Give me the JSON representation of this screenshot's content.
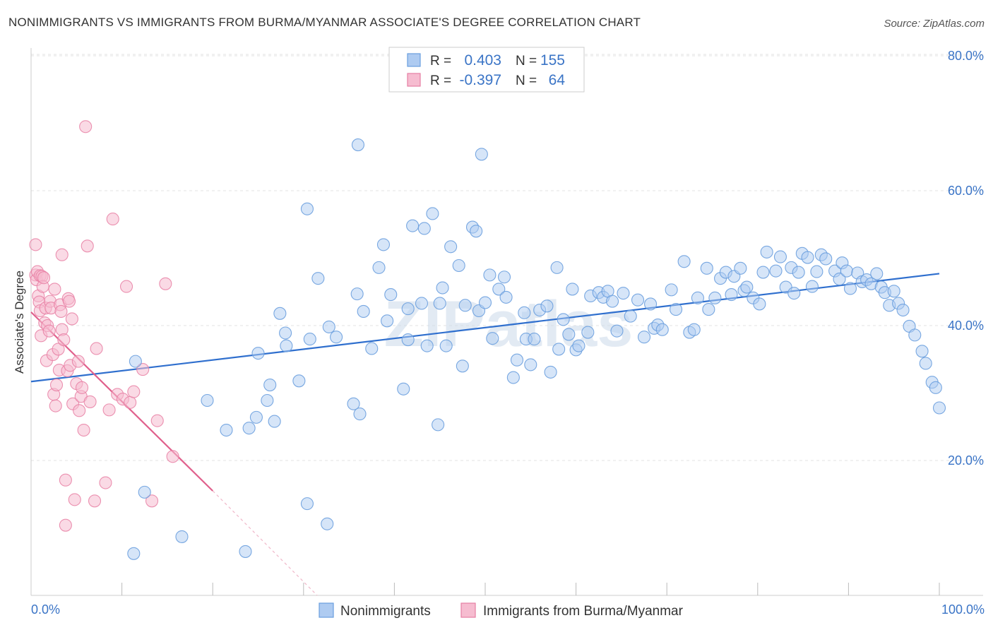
{
  "title": "NONIMMIGRANTS VS IMMIGRANTS FROM BURMA/MYANMAR ASSOCIATE'S DEGREE CORRELATION CHART",
  "source": "Source: ZipAtlas.com",
  "watermark": "ZIPatlas",
  "colors": {
    "blue": "#6a9fde",
    "blue_fill": "#aecbf1",
    "blue_line": "#2f6fce",
    "pink": "#e77fa3",
    "pink_fill": "#f6bcd0",
    "pink_line": "#e0608c",
    "axis_label": "#3a74c6"
  },
  "legend_box": [
    {
      "r_label": "R =",
      "r_value": "0.403",
      "n_label": "N =",
      "n_value": "155"
    },
    {
      "r_label": "R =",
      "r_value": "-0.397",
      "n_label": "N =",
      "n_value": "64"
    }
  ],
  "chart_data": {
    "type": "scatter",
    "xlabel": "",
    "ylabel": "Associate's Degree",
    "xlim": [
      0,
      100
    ],
    "ylim": [
      0,
      85
    ],
    "x_tick_labels": [
      "0.0%",
      "100.0%"
    ],
    "y_ticks": [
      20,
      40,
      60,
      80
    ],
    "y_tick_labels": [
      "20.0%",
      "40.0%",
      "60.0%",
      "80.0%"
    ],
    "grid": true,
    "legend": "bottom-center",
    "series": [
      {
        "name": "Nonimmigrants",
        "trend": {
          "x": [
            0,
            100
          ],
          "y": [
            31.7,
            47.7
          ]
        },
        "points": [
          [
            11.3,
            6.2
          ],
          [
            16.6,
            8.7
          ],
          [
            23.6,
            6.5
          ],
          [
            12.5,
            15.3
          ],
          [
            30.4,
            13.6
          ],
          [
            32.6,
            10.6
          ],
          [
            11.5,
            34.7
          ],
          [
            19.4,
            28.9
          ],
          [
            21.5,
            24.5
          ],
          [
            24.0,
            24.8
          ],
          [
            24.8,
            26.4
          ],
          [
            26.0,
            28.9
          ],
          [
            26.8,
            25.8
          ],
          [
            25.0,
            35.9
          ],
          [
            26.3,
            31.2
          ],
          [
            27.4,
            41.8
          ],
          [
            28.0,
            38.9
          ],
          [
            28.1,
            37.0
          ],
          [
            29.5,
            31.8
          ],
          [
            30.7,
            38.0
          ],
          [
            31.6,
            47.0
          ],
          [
            32.8,
            39.8
          ],
          [
            33.6,
            38.3
          ],
          [
            35.5,
            28.4
          ],
          [
            36.2,
            26.9
          ],
          [
            35.9,
            44.7
          ],
          [
            36.6,
            42.1
          ],
          [
            37.5,
            36.6
          ],
          [
            38.3,
            48.6
          ],
          [
            38.8,
            52.0
          ],
          [
            39.2,
            40.7
          ],
          [
            39.6,
            44.6
          ],
          [
            41.0,
            30.6
          ],
          [
            41.5,
            37.9
          ],
          [
            41.5,
            42.5
          ],
          [
            43.3,
            54.4
          ],
          [
            43.0,
            43.3
          ],
          [
            43.6,
            37.0
          ],
          [
            44.8,
            25.3
          ],
          [
            45.0,
            43.3
          ],
          [
            45.3,
            45.6
          ],
          [
            45.7,
            37.0
          ],
          [
            46.2,
            51.7
          ],
          [
            47.1,
            48.9
          ],
          [
            47.5,
            34.0
          ],
          [
            47.8,
            43.0
          ],
          [
            48.6,
            54.6
          ],
          [
            49.0,
            54.0
          ],
          [
            49.3,
            42.2
          ],
          [
            50.0,
            43.4
          ],
          [
            50.5,
            47.5
          ],
          [
            50.8,
            38.1
          ],
          [
            51.5,
            45.4
          ],
          [
            52.1,
            47.2
          ],
          [
            52.3,
            44.2
          ],
          [
            53.1,
            32.3
          ],
          [
            53.5,
            34.9
          ],
          [
            54.3,
            41.9
          ],
          [
            54.5,
            38.0
          ],
          [
            55.0,
            34.2
          ],
          [
            55.4,
            38.0
          ],
          [
            56.0,
            42.3
          ],
          [
            56.8,
            42.9
          ],
          [
            57.2,
            33.1
          ],
          [
            57.9,
            48.6
          ],
          [
            58.1,
            36.5
          ],
          [
            58.6,
            40.9
          ],
          [
            59.2,
            38.7
          ],
          [
            59.6,
            45.4
          ],
          [
            60.0,
            36.4
          ],
          [
            60.3,
            37.0
          ],
          [
            61.3,
            39.0
          ],
          [
            61.6,
            44.4
          ],
          [
            62.5,
            44.9
          ],
          [
            63.0,
            44.2
          ],
          [
            63.5,
            45.1
          ],
          [
            64.0,
            43.6
          ],
          [
            64.5,
            39.2
          ],
          [
            65.2,
            44.8
          ],
          [
            66.0,
            41.4
          ],
          [
            66.8,
            43.8
          ],
          [
            67.5,
            38.3
          ],
          [
            68.2,
            43.2
          ],
          [
            68.6,
            39.6
          ],
          [
            69.0,
            40.1
          ],
          [
            69.5,
            39.4
          ],
          [
            70.5,
            45.3
          ],
          [
            71.0,
            42.4
          ],
          [
            71.9,
            49.5
          ],
          [
            72.5,
            39.0
          ],
          [
            73.0,
            39.4
          ],
          [
            73.4,
            44.1
          ],
          [
            74.4,
            48.5
          ],
          [
            74.6,
            42.4
          ],
          [
            75.3,
            44.1
          ],
          [
            75.9,
            47.0
          ],
          [
            76.5,
            47.9
          ],
          [
            77.1,
            44.6
          ],
          [
            77.4,
            47.3
          ],
          [
            78.1,
            48.5
          ],
          [
            78.5,
            45.2
          ],
          [
            78.8,
            45.7
          ],
          [
            79.5,
            44.1
          ],
          [
            80.2,
            43.2
          ],
          [
            80.6,
            47.9
          ],
          [
            81.0,
            50.9
          ],
          [
            82.0,
            48.1
          ],
          [
            82.5,
            50.2
          ],
          [
            83.1,
            45.7
          ],
          [
            83.7,
            48.6
          ],
          [
            84.0,
            44.8
          ],
          [
            84.5,
            47.9
          ],
          [
            84.9,
            50.7
          ],
          [
            85.5,
            50.1
          ],
          [
            86.0,
            45.8
          ],
          [
            86.5,
            48.0
          ],
          [
            87.0,
            50.5
          ],
          [
            87.5,
            49.9
          ],
          [
            88.5,
            48.1
          ],
          [
            89.0,
            46.9
          ],
          [
            89.3,
            49.3
          ],
          [
            89.8,
            48.1
          ],
          [
            90.2,
            45.5
          ],
          [
            91.0,
            47.8
          ],
          [
            91.5,
            46.5
          ],
          [
            92.0,
            46.8
          ],
          [
            92.5,
            46.2
          ],
          [
            93.1,
            47.7
          ],
          [
            93.6,
            45.7
          ],
          [
            94.0,
            44.9
          ],
          [
            94.5,
            43.0
          ],
          [
            95.0,
            45.1
          ],
          [
            95.5,
            43.3
          ],
          [
            96.0,
            42.3
          ],
          [
            96.7,
            39.9
          ],
          [
            97.3,
            38.6
          ],
          [
            98.1,
            36.2
          ],
          [
            98.5,
            34.4
          ],
          [
            99.2,
            31.6
          ],
          [
            99.6,
            30.8
          ],
          [
            100.0,
            27.8
          ],
          [
            49.6,
            65.4
          ],
          [
            36.0,
            66.8
          ],
          [
            30.4,
            57.3
          ],
          [
            44.2,
            56.6
          ],
          [
            42.0,
            54.8
          ]
        ]
      },
      {
        "name": "Immigrants from Burma/Myanmar",
        "trend": {
          "x": [
            0,
            20
          ],
          "y": [
            42,
            15.5
          ]
        },
        "trend_extension": {
          "x": [
            20,
            31.5
          ],
          "y": [
            15.5,
            0
          ]
        },
        "points": [
          [
            0.5,
            52.0
          ],
          [
            0.5,
            47.5
          ],
          [
            0.6,
            46.8
          ],
          [
            0.7,
            48.0
          ],
          [
            0.8,
            44.4
          ],
          [
            0.9,
            43.5
          ],
          [
            1.0,
            47.4
          ],
          [
            1.0,
            42.2
          ],
          [
            1.1,
            38.5
          ],
          [
            1.2,
            47.3
          ],
          [
            1.3,
            45.8
          ],
          [
            1.4,
            47.1
          ],
          [
            1.5,
            40.4
          ],
          [
            1.6,
            42.6
          ],
          [
            1.7,
            34.8
          ],
          [
            1.8,
            40.0
          ],
          [
            2.0,
            39.2
          ],
          [
            2.1,
            43.6
          ],
          [
            2.2,
            42.6
          ],
          [
            2.4,
            35.7
          ],
          [
            2.5,
            29.8
          ],
          [
            2.6,
            45.4
          ],
          [
            2.7,
            28.1
          ],
          [
            2.8,
            31.2
          ],
          [
            3.0,
            36.5
          ],
          [
            3.1,
            33.4
          ],
          [
            3.2,
            43.1
          ],
          [
            3.3,
            42.1
          ],
          [
            3.4,
            39.4
          ],
          [
            3.6,
            37.9
          ],
          [
            3.8,
            17.1
          ],
          [
            3.8,
            10.4
          ],
          [
            4.0,
            33.3
          ],
          [
            4.1,
            44.0
          ],
          [
            4.2,
            43.6
          ],
          [
            4.3,
            34.1
          ],
          [
            4.5,
            41.0
          ],
          [
            4.6,
            28.4
          ],
          [
            4.8,
            14.2
          ],
          [
            5.0,
            31.4
          ],
          [
            5.2,
            34.7
          ],
          [
            5.3,
            27.4
          ],
          [
            5.5,
            29.5
          ],
          [
            5.6,
            30.8
          ],
          [
            5.8,
            24.5
          ],
          [
            6.0,
            69.5
          ],
          [
            6.2,
            51.8
          ],
          [
            6.5,
            28.7
          ],
          [
            7.0,
            14.0
          ],
          [
            7.2,
            36.6
          ],
          [
            8.2,
            16.7
          ],
          [
            8.6,
            27.5
          ],
          [
            9.0,
            55.8
          ],
          [
            9.5,
            29.8
          ],
          [
            10.1,
            29.1
          ],
          [
            10.5,
            45.8
          ],
          [
            10.9,
            28.6
          ],
          [
            11.3,
            30.2
          ],
          [
            12.3,
            33.5
          ],
          [
            13.3,
            14.0
          ],
          [
            13.9,
            25.9
          ],
          [
            14.8,
            46.2
          ],
          [
            15.6,
            20.6
          ],
          [
            3.4,
            50.5
          ]
        ]
      }
    ]
  }
}
